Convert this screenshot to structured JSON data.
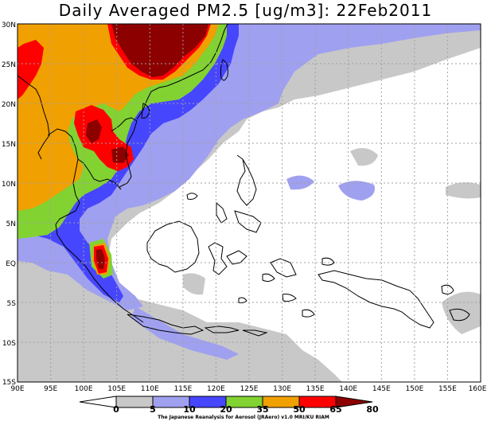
{
  "title": "Daily Averaged PM2.5 [ug/m3]: 22Feb2011",
  "lat_labels": [
    "30N",
    "25N",
    "20N",
    "15N",
    "10N",
    "5N",
    "EQ",
    "5S",
    "10S",
    "15S"
  ],
  "lon_labels": [
    "90E",
    "95E",
    "100E",
    "105E",
    "110E",
    "115E",
    "120E",
    "125E",
    "130E",
    "135E",
    "140E",
    "145E",
    "150E",
    "155E",
    "160E"
  ],
  "legend": {
    "ticks": [
      "0",
      "5",
      "10",
      "20",
      "35",
      "50",
      "65",
      "80"
    ],
    "colors": [
      "#ffffff",
      "#c8c8c8",
      "#a0a0f0",
      "#4646ff",
      "#82d232",
      "#f0a000",
      "#ff0000",
      "#8c0000"
    ],
    "credit": "The Japanese Reanalysis for Aerosol (JRAero) v1.0 MRI/KU RIAM"
  }
}
